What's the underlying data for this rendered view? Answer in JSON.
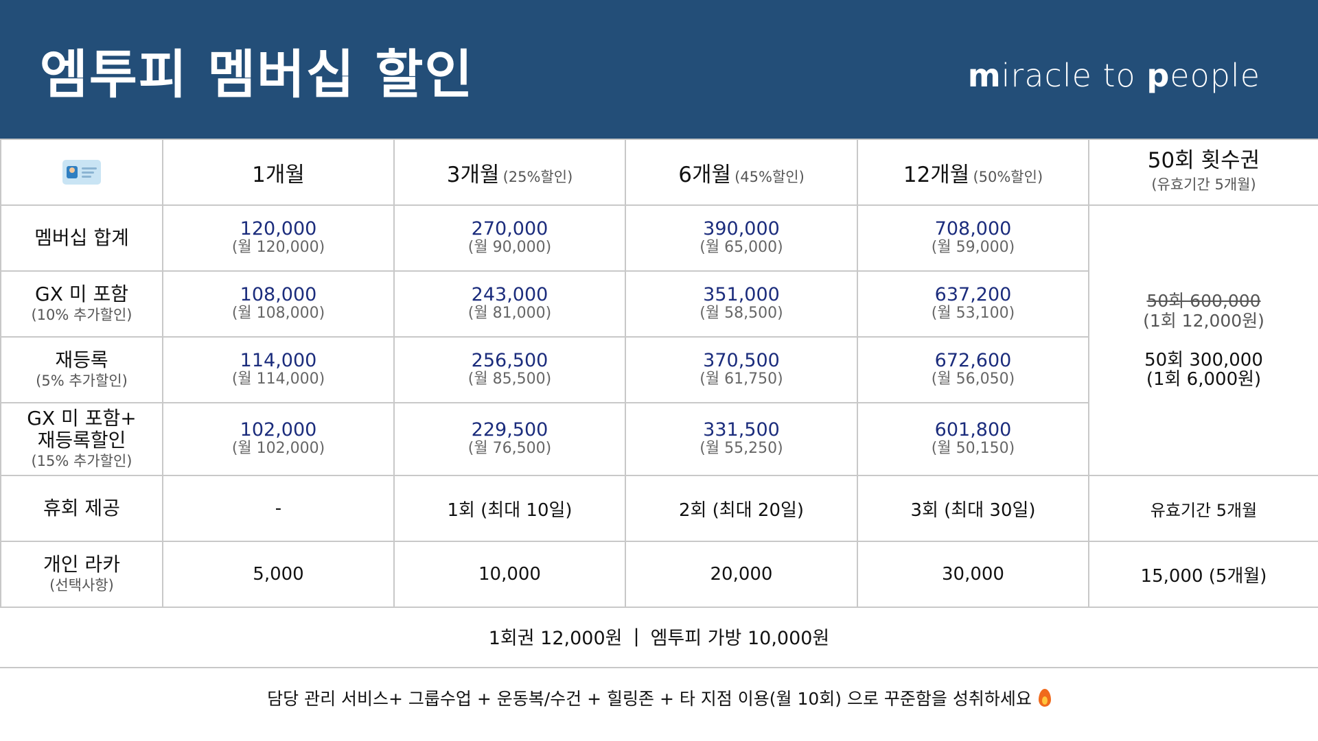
{
  "header": {
    "title": "엠투피 멤버십 할인",
    "brand_prefix_bold": "m",
    "brand_middle": "iracle to ",
    "brand_p_bold": "p",
    "brand_suffix": "eople",
    "bg_color": "#234e78"
  },
  "table": {
    "corner_icon": "id-card-icon",
    "columns": [
      {
        "label": "1개월",
        "sub": ""
      },
      {
        "label": "3개월",
        "sub": "(25%할인)"
      },
      {
        "label": "6개월",
        "sub": "(45%할인)"
      },
      {
        "label": "12개월",
        "sub": "(50%할인)"
      },
      {
        "label": "50회 횟수권",
        "sub": "(유효기간 5개월)"
      }
    ],
    "rows": [
      {
        "label": "멤버십 합계",
        "sub": "",
        "cells": [
          {
            "price": "120,000",
            "monthly": "(월 120,000)"
          },
          {
            "price": "270,000",
            "monthly": "(월 90,000)"
          },
          {
            "price": "390,000",
            "monthly": "(월 65,000)"
          },
          {
            "price": "708,000",
            "monthly": "(월 59,000)"
          }
        ]
      },
      {
        "label": "GX 미 포함",
        "sub": "(10% 추가할인)",
        "cells": [
          {
            "price": "108,000",
            "monthly": "(월 108,000)"
          },
          {
            "price": "243,000",
            "monthly": "(월 81,000)"
          },
          {
            "price": "351,000",
            "monthly": "(월 58,500)"
          },
          {
            "price": "637,200",
            "monthly": "(월 53,100)"
          }
        ]
      },
      {
        "label": "재등록",
        "sub": "(5% 추가할인)",
        "cells": [
          {
            "price": "114,000",
            "monthly": "(월 114,000)"
          },
          {
            "price": "256,500",
            "monthly": "(월 85,500)"
          },
          {
            "price": "370,500",
            "monthly": "(월 61,750)"
          },
          {
            "price": "672,600",
            "monthly": "(월 56,050)"
          }
        ]
      },
      {
        "label_line1": "GX 미 포함+",
        "label_line2": "재등록할인",
        "sub": "(15% 추가할인)",
        "cells": [
          {
            "price": "102,000",
            "monthly": "(월 102,000)"
          },
          {
            "price": "229,500",
            "monthly": "(월 76,500)"
          },
          {
            "price": "331,500",
            "monthly": "(월 55,250)"
          },
          {
            "price": "601,800",
            "monthly": "(월 50,150)"
          }
        ]
      }
    ],
    "count_pass": {
      "old_price": "50회 600,000",
      "old_unit": "(1회 12,000원)",
      "new_price": "50회 300,000",
      "new_unit": "(1회 6,000원)"
    },
    "pause_row": {
      "label": "휴회 제공",
      "cells": [
        "-",
        "1회 (최대 10일)",
        "2회 (최대 20일)",
        "3회 (최대 30일)",
        "유효기간 5개월"
      ]
    },
    "locker_row": {
      "label": "개인 라카",
      "sub": "(선택사항)",
      "cells": [
        "5,000",
        "10,000",
        "20,000",
        "30,000",
        "15,000 (5개월)"
      ]
    }
  },
  "footer": {
    "single_pass": "1회권 12,000원",
    "separator": "|",
    "bag_price": "엠투피 가방 10,000원",
    "tagline": "담당 관리 서비스+ 그룹수업 + 운동복/수건 + 힐링존 + 타 지점 이용(월 10회) 으로 꾸준함을 성취하세요",
    "tagline_icon": "fire-icon"
  },
  "colors": {
    "price_text": "#1b2c7c",
    "grid_line": "#c8c8c8"
  }
}
